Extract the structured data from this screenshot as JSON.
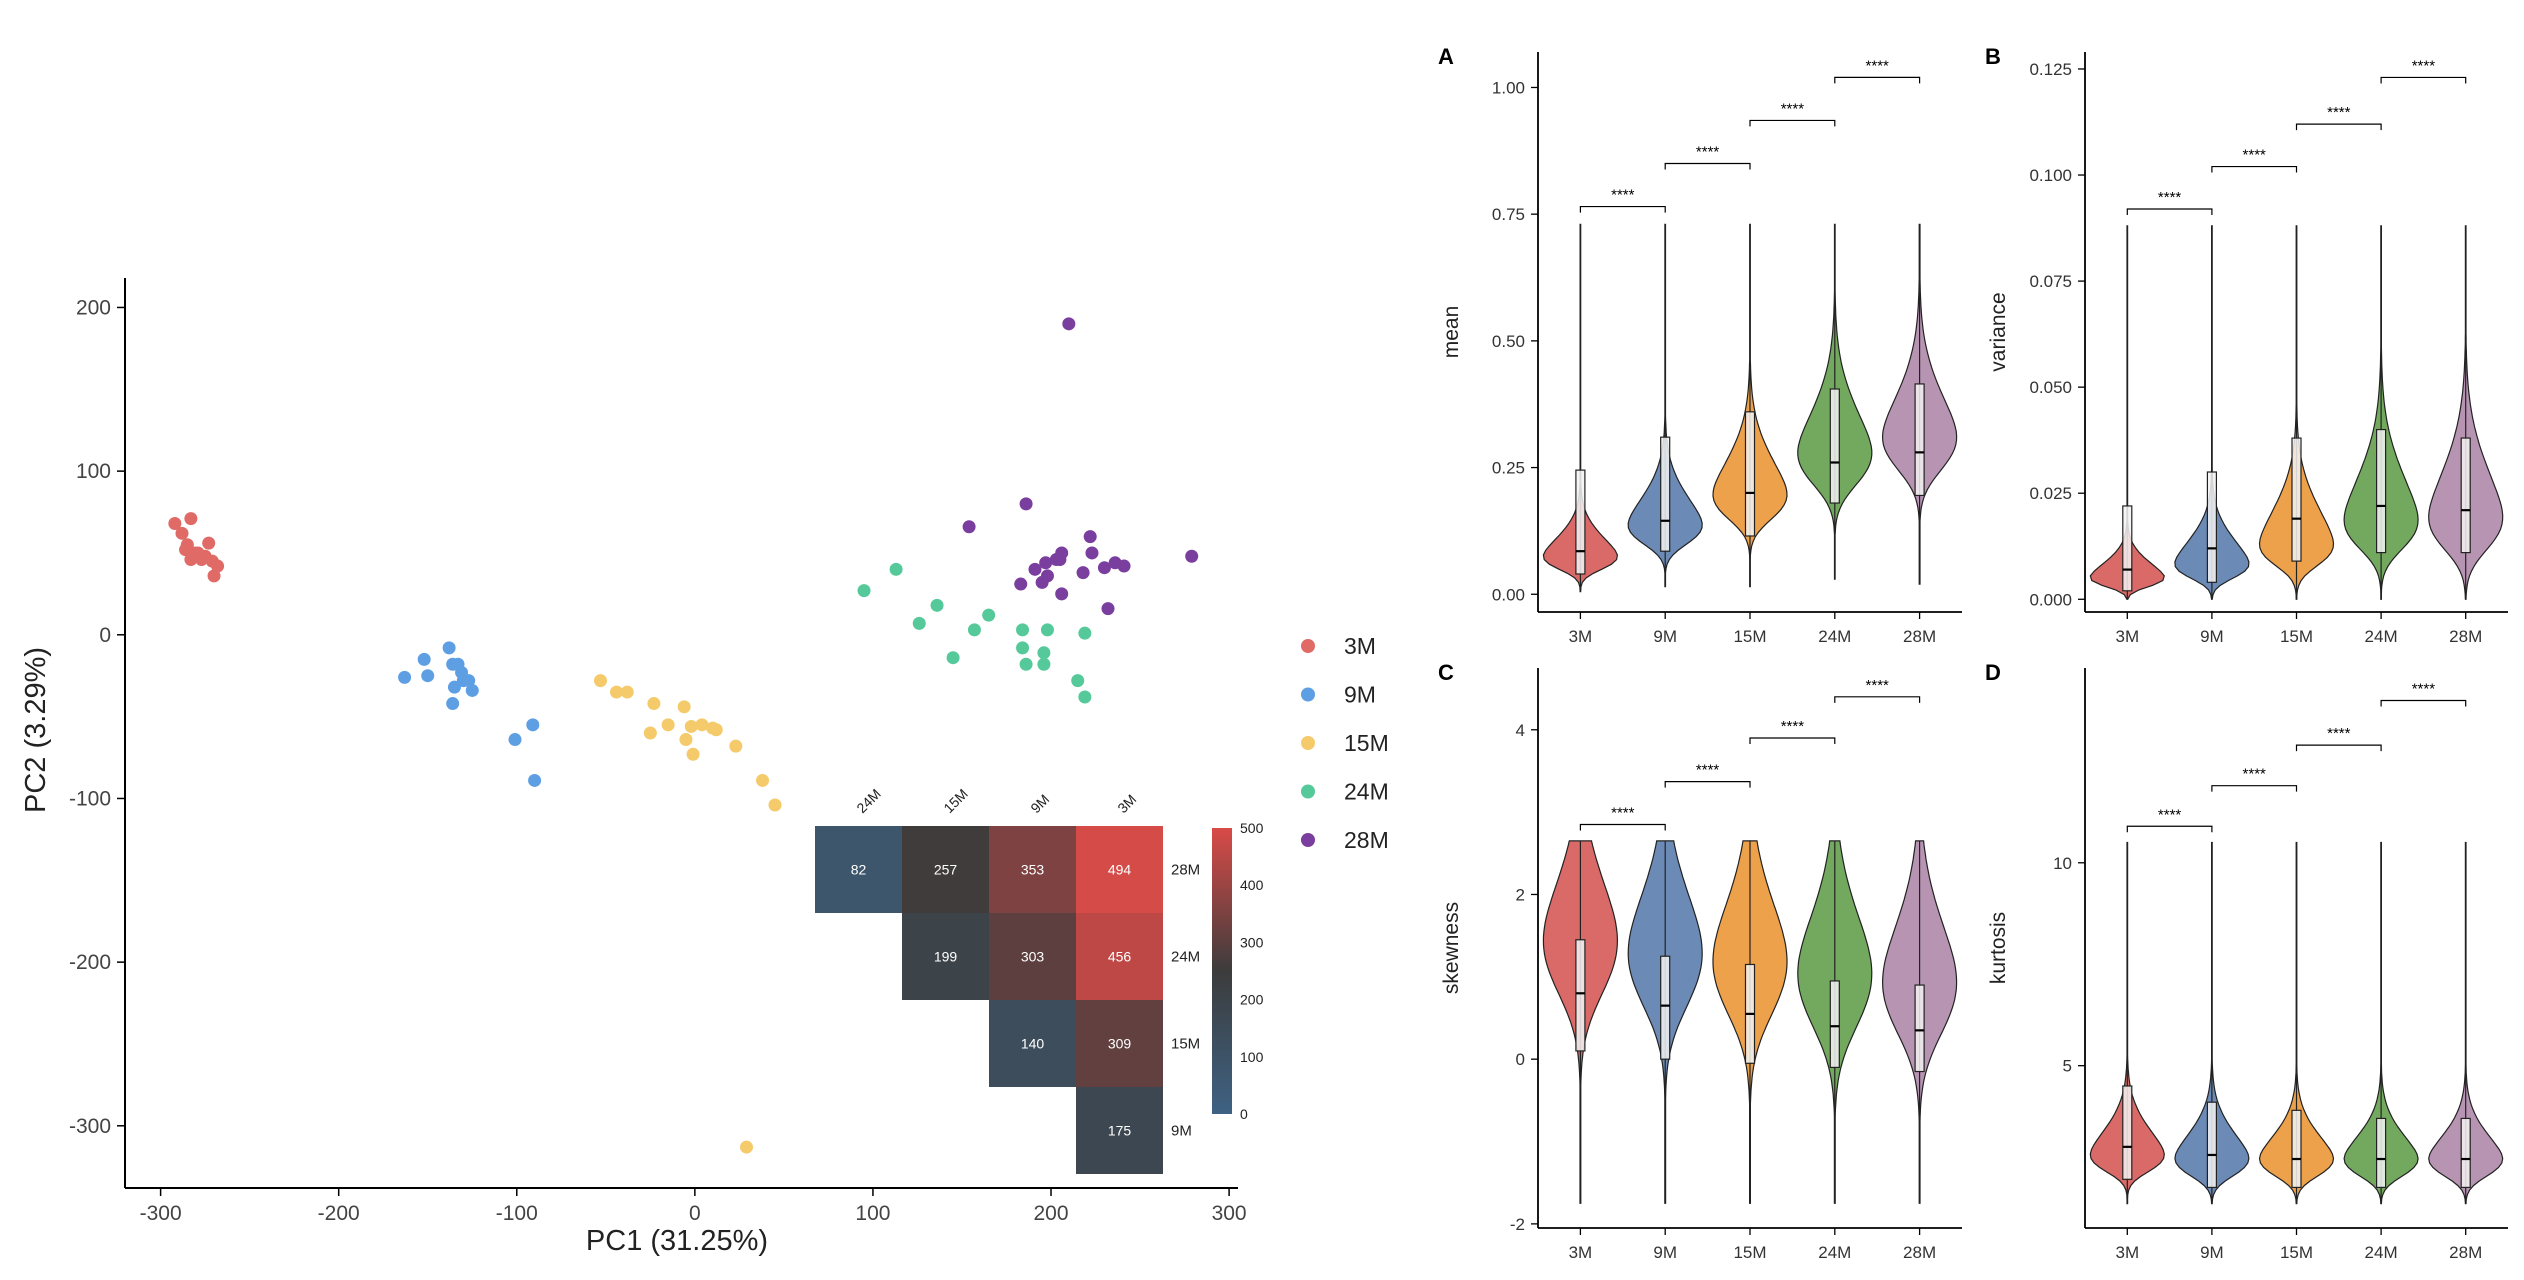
{
  "colors": {
    "3M": "#E06A66",
    "9M": "#5E9FE4",
    "15M": "#F4CA6A",
    "24M": "#56C99A",
    "28M": "#7A3E9E"
  },
  "violin_colors": {
    "3M": "#D96A68",
    "9M": "#6B8AB6",
    "15M": "#EDA14B",
    "24M": "#73A95E",
    "28M": "#B894B3"
  },
  "chart_data": [
    {
      "id": "pca",
      "type": "scatter",
      "xlabel": "PC1 (31.25%)",
      "ylabel": "PC2 (3.29%)",
      "xlim": [
        -320,
        305
      ],
      "ylim": [
        -338,
        218
      ],
      "xticks": [
        -300,
        -200,
        -100,
        0,
        100,
        200,
        300
      ],
      "yticks": [
        -300,
        -200,
        -100,
        0,
        100,
        200
      ],
      "legend": {
        "placement": "right",
        "labels": [
          "3M",
          "9M",
          "15M",
          "24M",
          "28M"
        ]
      },
      "series": [
        {
          "name": "3M",
          "points": [
            [
              -292,
              68
            ],
            [
              -288,
              62
            ],
            [
              -283,
              71
            ],
            [
              -285,
              55
            ],
            [
              -281,
              50
            ],
            [
              -283,
              46
            ],
            [
              -279,
              50
            ],
            [
              -275,
              48
            ],
            [
              -273,
              56
            ],
            [
              -271,
              45
            ],
            [
              -268,
              42
            ],
            [
              -270,
              36
            ],
            [
              -277,
              46
            ],
            [
              -286,
              52
            ]
          ]
        },
        {
          "name": "9M",
          "points": [
            [
              -163,
              -26
            ],
            [
              -152,
              -15
            ],
            [
              -150,
              -25
            ],
            [
              -138,
              -8
            ],
            [
              -136,
              -18
            ],
            [
              -133,
              -18
            ],
            [
              -131,
              -23
            ],
            [
              -127,
              -28
            ],
            [
              -125,
              -34
            ],
            [
              -135,
              -32
            ],
            [
              -130,
              -28
            ],
            [
              -136,
              -42
            ],
            [
              -101,
              -64
            ],
            [
              -91,
              -55
            ],
            [
              -90,
              -89
            ]
          ]
        },
        {
          "name": "15M",
          "points": [
            [
              -53,
              -28
            ],
            [
              -44,
              -35
            ],
            [
              -38,
              -35
            ],
            [
              -23,
              -42
            ],
            [
              -15,
              -55
            ],
            [
              -25,
              -60
            ],
            [
              -6,
              -44
            ],
            [
              -2,
              -56
            ],
            [
              -5,
              -64
            ],
            [
              4,
              -55
            ],
            [
              10,
              -57
            ],
            [
              12,
              -58
            ],
            [
              -1,
              -73
            ],
            [
              23,
              -68
            ],
            [
              38,
              -89
            ],
            [
              45,
              -104
            ],
            [
              29,
              -313
            ]
          ]
        },
        {
          "name": "24M",
          "points": [
            [
              95,
              27
            ],
            [
              113,
              40
            ],
            [
              126,
              7
            ],
            [
              136,
              18
            ],
            [
              145,
              -14
            ],
            [
              157,
              3
            ],
            [
              165,
              12
            ],
            [
              184,
              3
            ],
            [
              184,
              -8
            ],
            [
              186,
              -18
            ],
            [
              196,
              -11
            ],
            [
              196,
              -18
            ],
            [
              198,
              3
            ],
            [
              215,
              -28
            ],
            [
              219,
              1
            ],
            [
              219,
              -38
            ]
          ]
        },
        {
          "name": "28M",
          "points": [
            [
              210,
              190
            ],
            [
              154,
              66
            ],
            [
              186,
              80
            ],
            [
              183,
              31
            ],
            [
              191,
              40
            ],
            [
              197,
              44
            ],
            [
              195,
              32
            ],
            [
              198,
              36
            ],
            [
              205,
              46
            ],
            [
              206,
              50
            ],
            [
              206,
              25
            ],
            [
              223,
              50
            ],
            [
              222,
              60
            ],
            [
              218,
              38
            ],
            [
              230,
              41
            ],
            [
              232,
              16
            ],
            [
              236,
              44
            ],
            [
              241,
              42
            ],
            [
              279,
              48
            ],
            [
              203,
              46
            ]
          ]
        }
      ]
    },
    {
      "id": "heatmap",
      "type": "heatmap",
      "col_labels": [
        "24M",
        "15M",
        "9M",
        "3M"
      ],
      "row_labels": [
        "28M",
        "24M",
        "15M",
        "9M"
      ],
      "cells": [
        {
          "row": "28M",
          "col": "24M",
          "value": 82
        },
        {
          "row": "28M",
          "col": "15M",
          "value": 257
        },
        {
          "row": "28M",
          "col": "9M",
          "value": 353
        },
        {
          "row": "28M",
          "col": "3M",
          "value": 494
        },
        {
          "row": "24M",
          "col": "15M",
          "value": 199
        },
        {
          "row": "24M",
          "col": "9M",
          "value": 303
        },
        {
          "row": "24M",
          "col": "3M",
          "value": 456
        },
        {
          "row": "15M",
          "col": "9M",
          "value": 140
        },
        {
          "row": "15M",
          "col": "3M",
          "value": 309
        },
        {
          "row": "9M",
          "col": "3M",
          "value": 175
        }
      ],
      "colorbar": {
        "ticks": [
          500,
          400,
          300,
          200,
          100,
          0
        ],
        "range": [
          0,
          500
        ],
        "low": "#3E6283",
        "mid": "#3C3C3C",
        "high": "#D94B48"
      }
    },
    {
      "id": "A",
      "panel_label": "A",
      "type": "violin",
      "ylabel": "mean",
      "categories": [
        "3M",
        "9M",
        "15M",
        "24M",
        "28M"
      ],
      "ylim": [
        -0.035,
        1.07
      ],
      "yticks": [
        0.0,
        0.25,
        0.5,
        0.75,
        1.0
      ],
      "ytick_labels": [
        "0.00",
        "0.25",
        "0.50",
        "0.75",
        "1.00"
      ],
      "range": [
        [
          0.005,
          0.73
        ],
        [
          0.015,
          0.73
        ],
        [
          0.015,
          0.73
        ],
        [
          0.03,
          0.73
        ],
        [
          0.02,
          0.73
        ]
      ],
      "quartiles": [
        [
          0.04,
          0.085,
          0.245
        ],
        [
          0.085,
          0.145,
          0.31
        ],
        [
          0.115,
          0.2,
          0.36
        ],
        [
          0.18,
          0.26,
          0.405
        ],
        [
          0.195,
          0.28,
          0.415
        ]
      ],
      "mode": [
        0.05,
        0.1,
        0.15,
        0.22,
        0.25
      ],
      "spread": [
        0.055,
        0.08,
        0.1,
        0.12,
        0.12
      ],
      "significance": [
        {
          "pair": [
            "3M",
            "9M"
          ],
          "label": "****",
          "y": 0.765
        },
        {
          "pair": [
            "9M",
            "15M"
          ],
          "label": "****",
          "y": 0.85
        },
        {
          "pair": [
            "15M",
            "24M"
          ],
          "label": "****",
          "y": 0.935
        },
        {
          "pair": [
            "24M",
            "28M"
          ],
          "label": "****",
          "y": 1.02
        }
      ]
    },
    {
      "id": "B",
      "panel_label": "B",
      "type": "violin",
      "ylabel": "variance",
      "categories": [
        "3M",
        "9M",
        "15M",
        "24M",
        "28M"
      ],
      "ylim": [
        -0.003,
        0.129
      ],
      "yticks": [
        0.0,
        0.025,
        0.05,
        0.075,
        0.1,
        0.125
      ],
      "ytick_labels": [
        "0.000",
        "0.025",
        "0.050",
        "0.075",
        "0.100",
        "0.125"
      ],
      "range": [
        [
          0.0,
          0.088
        ],
        [
          0.0,
          0.088
        ],
        [
          0.0,
          0.088
        ],
        [
          0.0,
          0.088
        ],
        [
          0.0,
          0.088
        ]
      ],
      "quartiles": [
        [
          0.002,
          0.007,
          0.022
        ],
        [
          0.004,
          0.012,
          0.03
        ],
        [
          0.009,
          0.019,
          0.038
        ],
        [
          0.011,
          0.022,
          0.04
        ],
        [
          0.011,
          0.021,
          0.038
        ]
      ],
      "mode": [
        0.003,
        0.005,
        0.008,
        0.012,
        0.012
      ],
      "spread": [
        0.005,
        0.008,
        0.012,
        0.015,
        0.016
      ],
      "significance": [
        {
          "pair": [
            "3M",
            "9M"
          ],
          "label": "****",
          "y": 0.092
        },
        {
          "pair": [
            "9M",
            "15M"
          ],
          "label": "****",
          "y": 0.102
        },
        {
          "pair": [
            "15M",
            "24M"
          ],
          "label": "****",
          "y": 0.112
        },
        {
          "pair": [
            "24M",
            "28M"
          ],
          "label": "****",
          "y": 0.123
        }
      ]
    },
    {
      "id": "C",
      "panel_label": "C",
      "type": "violin",
      "ylabel": "skewness",
      "categories": [
        "3M",
        "9M",
        "15M",
        "24M",
        "28M"
      ],
      "ylim": [
        -2.05,
        4.75
      ],
      "yticks": [
        -2,
        0,
        2,
        4
      ],
      "ytick_labels": [
        "-2",
        "0",
        "2",
        "4"
      ],
      "range": [
        [
          -1.75,
          2.65
        ],
        [
          -1.75,
          2.65
        ],
        [
          -1.75,
          2.65
        ],
        [
          -1.75,
          2.65
        ],
        [
          -1.75,
          2.65
        ]
      ],
      "quartiles": [
        [
          0.1,
          0.8,
          1.45
        ],
        [
          0.0,
          0.65,
          1.25
        ],
        [
          -0.05,
          0.55,
          1.15
        ],
        [
          -0.1,
          0.4,
          0.95
        ],
        [
          -0.15,
          0.35,
          0.9
        ]
      ],
      "mode": [
        0.9,
        0.75,
        0.65,
        0.5,
        0.4
      ],
      "spread": [
        1.0,
        1.0,
        1.0,
        1.0,
        1.0
      ],
      "significance": [
        {
          "pair": [
            "3M",
            "9M"
          ],
          "label": "****",
          "y": 2.85
        },
        {
          "pair": [
            "9M",
            "15M"
          ],
          "label": "****",
          "y": 3.37
        },
        {
          "pair": [
            "15M",
            "24M"
          ],
          "label": "****",
          "y": 3.9
        },
        {
          "pair": [
            "24M",
            "28M"
          ],
          "label": "****",
          "y": 4.4
        }
      ]
    },
    {
      "id": "D",
      "panel_label": "D",
      "type": "violin",
      "ylabel": "kurtosis",
      "categories": [
        "3M",
        "9M",
        "15M",
        "24M",
        "28M"
      ],
      "ylim": [
        1.0,
        14.8
      ],
      "yticks": [
        5,
        10
      ],
      "ytick_labels": [
        "5",
        "10"
      ],
      "range": [
        [
          1.6,
          10.5
        ],
        [
          1.6,
          10.5
        ],
        [
          1.6,
          10.5
        ],
        [
          1.6,
          10.5
        ],
        [
          1.6,
          10.5
        ]
      ],
      "quartiles": [
        [
          2.2,
          3.0,
          4.5
        ],
        [
          2.0,
          2.8,
          4.1
        ],
        [
          2.0,
          2.7,
          3.9
        ],
        [
          2.0,
          2.7,
          3.7
        ],
        [
          2.0,
          2.7,
          3.7
        ]
      ],
      "mode": [
        2.4,
        2.3,
        2.3,
        2.3,
        2.3
      ],
      "spread": [
        0.9,
        0.9,
        0.85,
        0.85,
        0.85
      ],
      "significance": [
        {
          "pair": [
            "3M",
            "9M"
          ],
          "label": "****",
          "y": 10.9
        },
        {
          "pair": [
            "9M",
            "15M"
          ],
          "label": "****",
          "y": 11.9
        },
        {
          "pair": [
            "15M",
            "24M"
          ],
          "label": "****",
          "y": 12.9
        },
        {
          "pair": [
            "24M",
            "28M"
          ],
          "label": "****",
          "y": 14.0
        }
      ]
    }
  ]
}
